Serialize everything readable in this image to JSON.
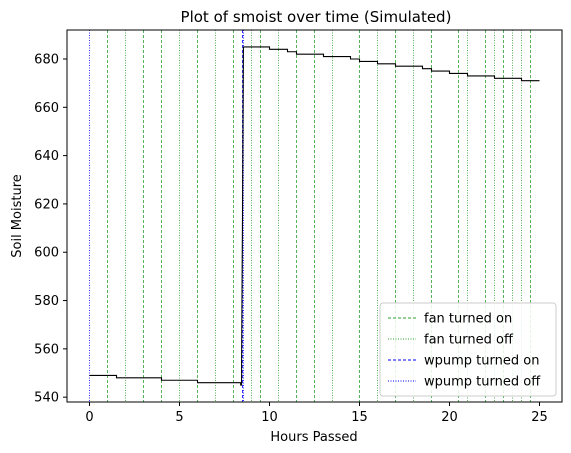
{
  "chart_data": {
    "type": "line",
    "title": "Plot of smoist over time (Simulated)",
    "xlabel": "Hours Passed",
    "ylabel": "Soil Moisture",
    "xlim": [
      -1.25,
      26.25
    ],
    "ylim": [
      538,
      692
    ],
    "xticks": [
      0,
      5,
      10,
      15,
      20,
      25
    ],
    "yticks": [
      540,
      560,
      580,
      600,
      620,
      640,
      660,
      680
    ],
    "grid": false,
    "legend_position": "lower-right",
    "series": [
      {
        "kind": "step-line",
        "color": "#000000",
        "points": [
          [
            0,
            549
          ],
          [
            1.5,
            549
          ],
          [
            1.5,
            548
          ],
          [
            4.0,
            548
          ],
          [
            4.0,
            547
          ],
          [
            6.0,
            547
          ],
          [
            6.0,
            546
          ],
          [
            8.4,
            546
          ],
          [
            8.4,
            545
          ],
          [
            8.45,
            545
          ],
          [
            8.45,
            555
          ],
          [
            8.5,
            615
          ],
          [
            8.55,
            685
          ],
          [
            9.0,
            685
          ],
          [
            9.0,
            685
          ],
          [
            10.0,
            685
          ],
          [
            10.0,
            684
          ],
          [
            11.0,
            684
          ],
          [
            11.0,
            683
          ],
          [
            11.5,
            683
          ],
          [
            11.5,
            682
          ],
          [
            13.0,
            682
          ],
          [
            13.0,
            681
          ],
          [
            14.5,
            681
          ],
          [
            14.5,
            680
          ],
          [
            15.0,
            680
          ],
          [
            15.0,
            679
          ],
          [
            16.0,
            679
          ],
          [
            16.0,
            678
          ],
          [
            17.0,
            678
          ],
          [
            17.0,
            677
          ],
          [
            18.5,
            677
          ],
          [
            18.5,
            676
          ],
          [
            19.0,
            676
          ],
          [
            19.0,
            675
          ],
          [
            20.0,
            675
          ],
          [
            20.0,
            674
          ],
          [
            21.0,
            674
          ],
          [
            21.0,
            673
          ],
          [
            22.5,
            673
          ],
          [
            22.5,
            672
          ],
          [
            24.0,
            672
          ],
          [
            24.0,
            671
          ],
          [
            25.0,
            671
          ]
        ]
      }
    ],
    "events": [
      {
        "name": "fan turned on",
        "color": "#2ca02c",
        "style": "dashed",
        "x": [
          1,
          3,
          4,
          6,
          8,
          9.5,
          11.5,
          12.5,
          15,
          17,
          19,
          20.5,
          22,
          23,
          24.5
        ]
      },
      {
        "name": "fan turned off",
        "color": "#2ca02c",
        "style": "dotted",
        "x": [
          2,
          5,
          7,
          9,
          10.5,
          13.5,
          16,
          18,
          21,
          22.5,
          23.5,
          24
        ]
      },
      {
        "name": "wpump turned on",
        "color": "#0000ff",
        "style": "dashed",
        "x": [
          8.5
        ]
      },
      {
        "name": "wpump turned off",
        "color": "#0000ff",
        "style": "dotted",
        "x": [
          0,
          8.55
        ]
      }
    ]
  }
}
